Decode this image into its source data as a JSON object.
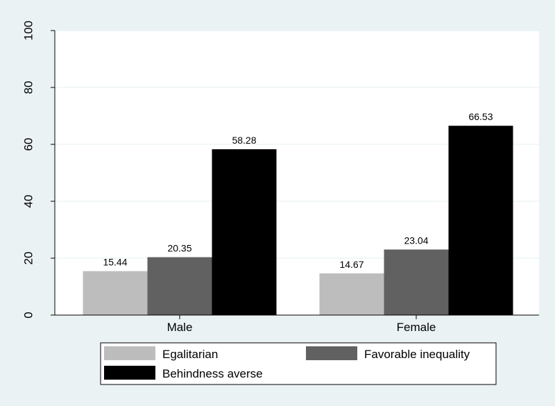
{
  "chart_data": {
    "type": "bar",
    "title": "",
    "xlabel": "",
    "ylabel": "",
    "categories": [
      "Male",
      "Female"
    ],
    "series": [
      {
        "name": "Egalitarian",
        "values": [
          15.44,
          14.67
        ],
        "color": "#bdbdbd"
      },
      {
        "name": "Favorable inequality",
        "values": [
          20.35,
          23.04
        ],
        "color": "#616161"
      },
      {
        "name": "Behindness averse",
        "values": [
          58.28,
          66.53
        ],
        "color": "#000000"
      }
    ],
    "value_labels": [
      [
        "15.44",
        "14.67"
      ],
      [
        "20.35",
        "23.04"
      ],
      [
        "58.28",
        "66.53"
      ]
    ],
    "ylim": [
      0,
      100
    ],
    "yticks": [
      "0",
      "20",
      "40",
      "60",
      "80",
      "100"
    ],
    "ytick_values": [
      0,
      20,
      40,
      60,
      80,
      100
    ],
    "grid": true,
    "legend_position": "bottom",
    "colors": {
      "background": "#eaf2f3",
      "plot_background": "#ffffff",
      "grid": "#eaf2f3",
      "legend_background": "#ffffff"
    }
  }
}
